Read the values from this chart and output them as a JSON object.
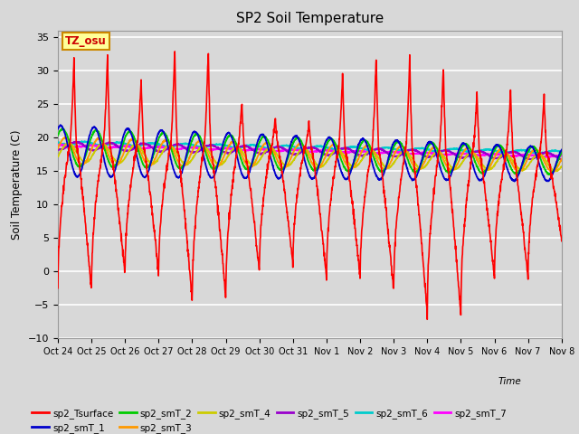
{
  "title": "SP2 Soil Temperature",
  "ylabel": "Soil Temperature (C)",
  "xlabel": "Time",
  "tz_label": "TZ_osu",
  "ylim": [
    -10,
    36
  ],
  "yticks": [
    -10,
    -5,
    0,
    5,
    10,
    15,
    20,
    25,
    30,
    35
  ],
  "x_tick_labels": [
    "Oct 24",
    "Oct 25",
    "Oct 26",
    "Oct 27",
    "Oct 28",
    "Oct 29",
    "Oct 30",
    "Oct 31",
    "Nov 1",
    "Nov 2",
    "Nov 3",
    "Nov 4",
    "Nov 5",
    "Nov 6",
    "Nov 7",
    "Nov 8"
  ],
  "series_colors": {
    "sp2_Tsurface": "#ff0000",
    "sp2_smT_1": "#0000cc",
    "sp2_smT_2": "#00cc00",
    "sp2_smT_3": "#ff9900",
    "sp2_smT_4": "#cccc00",
    "sp2_smT_5": "#9900cc",
    "sp2_smT_6": "#00cccc",
    "sp2_smT_7": "#ff00ff"
  },
  "background_color": "#d8d8d8",
  "plot_bg_color": "#d8d8d8",
  "grid_color": "#ffffff",
  "n_days": 15
}
